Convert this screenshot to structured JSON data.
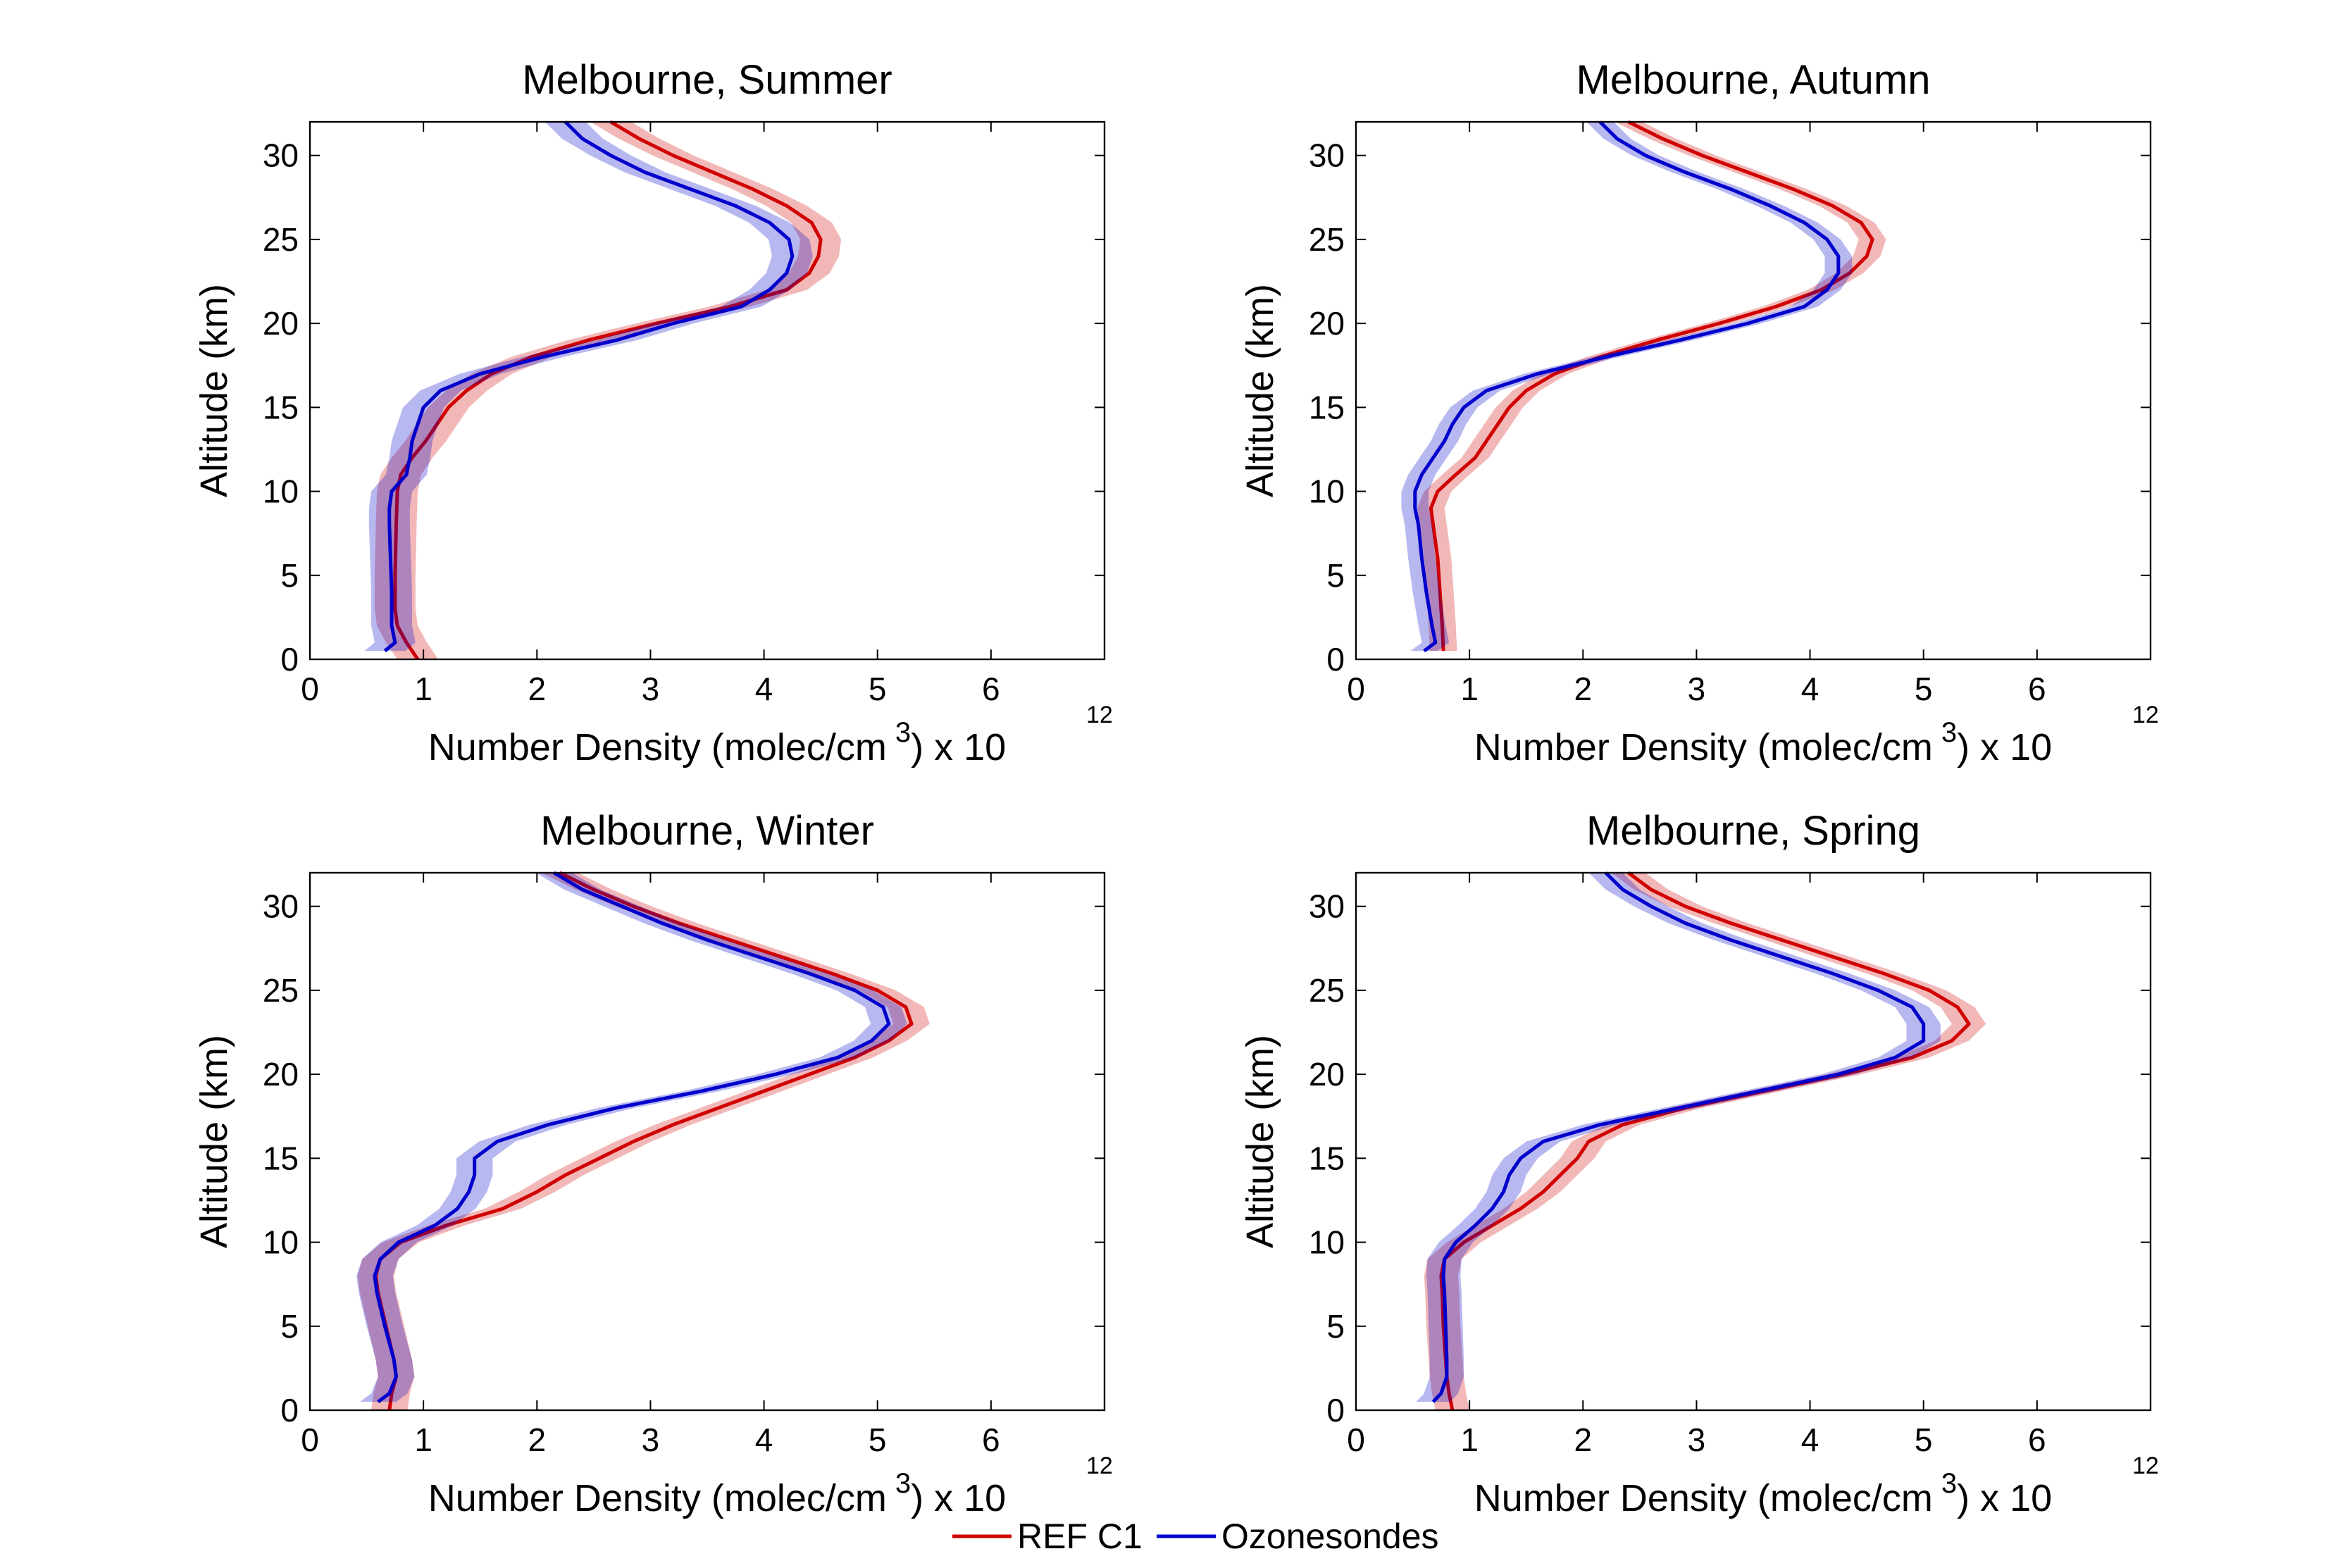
{
  "figure": {
    "legend": [
      {
        "label": "REF C1",
        "color": "#d10000"
      },
      {
        "label": "Ozonesondes",
        "color": "#0000cc"
      }
    ]
  },
  "chart_data": [
    {
      "type": "line",
      "title": "Melbourne, Summer",
      "xlabel": "Number Density (molec/cm 3) x 10",
      "xlabel_main": "Number Density (molec/cm",
      "xlabel_sup": "3",
      "xlabel_tail": ") x 10",
      "x_exponent": "12",
      "ylabel": "Altitude (km)",
      "xlim": [
        0,
        7
      ],
      "ylim": [
        0,
        32
      ],
      "xticks": [
        "0",
        "1",
        "2",
        "3",
        "4",
        "5",
        "6"
      ],
      "yticks": [
        "0",
        "5",
        "10",
        "15",
        "20",
        "25",
        "30"
      ],
      "band_width": 0.18,
      "series": [
        {
          "name": "REF C1",
          "color": "#d10000",
          "y": [
            0,
            1,
            2,
            3,
            5,
            8,
            10,
            11,
            12,
            13,
            14,
            15,
            16,
            17,
            18,
            19,
            20,
            21,
            22,
            23,
            24,
            25,
            26,
            27,
            28,
            29,
            30,
            31,
            32
          ],
          "x": [
            0.95,
            0.85,
            0.77,
            0.75,
            0.75,
            0.76,
            0.77,
            0.8,
            0.9,
            1.02,
            1.12,
            1.22,
            1.38,
            1.6,
            1.95,
            2.45,
            3.05,
            3.7,
            4.2,
            4.4,
            4.48,
            4.5,
            4.42,
            4.2,
            3.9,
            3.55,
            3.2,
            2.9,
            2.65
          ]
        },
        {
          "name": "Ozonesondes",
          "color": "#0000cc",
          "y": [
            0.5,
            1,
            2,
            4,
            6,
            8,
            9,
            10,
            11,
            12,
            13,
            14,
            15,
            16,
            17,
            18,
            19,
            20,
            21,
            22,
            23,
            24,
            25,
            26,
            27,
            28,
            29,
            30,
            31,
            32
          ],
          "x": [
            0.66,
            0.75,
            0.72,
            0.72,
            0.71,
            0.7,
            0.7,
            0.72,
            0.85,
            0.88,
            0.9,
            0.95,
            1.0,
            1.15,
            1.5,
            2.05,
            2.7,
            3.2,
            3.8,
            4.05,
            4.2,
            4.25,
            4.22,
            4.05,
            3.75,
            3.35,
            2.95,
            2.65,
            2.4,
            2.25
          ]
        }
      ]
    },
    {
      "type": "line",
      "title": "Melbourne, Autumn",
      "xlabel": "Number Density (molec/cm 3) x 10",
      "xlabel_main": "Number Density (molec/cm",
      "xlabel_sup": "3",
      "xlabel_tail": ") x 10",
      "x_exponent": "12",
      "ylabel": "Altitude (km)",
      "xlim": [
        0,
        7
      ],
      "ylim": [
        0,
        32
      ],
      "xticks": [
        "0",
        "1",
        "2",
        "3",
        "4",
        "5",
        "6"
      ],
      "yticks": [
        "0",
        "5",
        "10",
        "15",
        "20",
        "25",
        "30"
      ],
      "band_width": 0.12,
      "series": [
        {
          "name": "REF C1",
          "color": "#d10000",
          "y": [
            0.5,
            2,
            4,
            6,
            8,
            9,
            10,
            11,
            12,
            13,
            14,
            15,
            16,
            17,
            18,
            19,
            20,
            21,
            22,
            23,
            24,
            25,
            26,
            27,
            28,
            29,
            30,
            31,
            32
          ],
          "x": [
            0.77,
            0.76,
            0.74,
            0.72,
            0.68,
            0.66,
            0.72,
            0.88,
            1.05,
            1.15,
            1.25,
            1.35,
            1.5,
            1.75,
            2.15,
            2.65,
            3.2,
            3.7,
            4.1,
            4.35,
            4.5,
            4.55,
            4.45,
            4.2,
            3.85,
            3.45,
            3.05,
            2.7,
            2.4
          ]
        },
        {
          "name": "Ozonesondes",
          "color": "#0000cc",
          "y": [
            0.5,
            1,
            2,
            4,
            6,
            8,
            9,
            10,
            11,
            12,
            13,
            14,
            15,
            16,
            17,
            18,
            19,
            20,
            21,
            22,
            23,
            24,
            25,
            26,
            27,
            28,
            29,
            30,
            31,
            32
          ],
          "x": [
            0.6,
            0.7,
            0.67,
            0.62,
            0.58,
            0.55,
            0.52,
            0.52,
            0.58,
            0.68,
            0.78,
            0.85,
            0.95,
            1.15,
            1.6,
            2.2,
            2.85,
            3.45,
            3.95,
            4.15,
            4.25,
            4.25,
            4.15,
            3.95,
            3.65,
            3.3,
            2.9,
            2.55,
            2.3,
            2.15
          ]
        }
      ]
    },
    {
      "type": "line",
      "title": "Melbourne, Winter",
      "xlabel": "Number Density (molec/cm 3) x 10",
      "xlabel_main": "Number Density (molec/cm",
      "xlabel_sup": "3",
      "xlabel_tail": ") x 10",
      "x_exponent": "12",
      "ylabel": "Altitude (km)",
      "xlim": [
        0,
        7
      ],
      "ylim": [
        0,
        32
      ],
      "xticks": [
        "0",
        "1",
        "2",
        "3",
        "4",
        "5",
        "6"
      ],
      "yticks": [
        "0",
        "5",
        "10",
        "15",
        "20",
        "25",
        "30"
      ],
      "band_width": 0.16,
      "series": [
        {
          "name": "REF C1",
          "color": "#d10000",
          "y": [
            0,
            1,
            2,
            3,
            5,
            7,
            8,
            9,
            10,
            11,
            12,
            13,
            14,
            15,
            16,
            17,
            18,
            19,
            20,
            21,
            22,
            23,
            24,
            25,
            26,
            27,
            28,
            29,
            30,
            31,
            32
          ],
          "x": [
            0.7,
            0.72,
            0.76,
            0.74,
            0.67,
            0.6,
            0.58,
            0.62,
            0.8,
            1.2,
            1.7,
            2.0,
            2.25,
            2.55,
            2.85,
            3.2,
            3.6,
            4.0,
            4.4,
            4.8,
            5.1,
            5.3,
            5.25,
            5.0,
            4.6,
            4.15,
            3.7,
            3.25,
            2.85,
            2.5,
            2.2
          ]
        },
        {
          "name": "Ozonesondes",
          "color": "#0000cc",
          "y": [
            0.5,
            1,
            2,
            3,
            5,
            7,
            8,
            9,
            10,
            11,
            12,
            13,
            14,
            15,
            16,
            17,
            18,
            19,
            20,
            21,
            22,
            23,
            24,
            25,
            26,
            27,
            28,
            29,
            30,
            31,
            32
          ],
          "x": [
            0.6,
            0.7,
            0.76,
            0.74,
            0.66,
            0.59,
            0.57,
            0.62,
            0.78,
            1.1,
            1.3,
            1.4,
            1.45,
            1.45,
            1.65,
            2.1,
            2.7,
            3.45,
            4.1,
            4.65,
            4.95,
            5.1,
            5.05,
            4.8,
            4.4,
            3.95,
            3.5,
            3.1,
            2.75,
            2.4,
            2.15
          ]
        }
      ]
    },
    {
      "type": "line",
      "title": "Melbourne, Spring",
      "xlabel": "Number Density (molec/cm 3) x 10",
      "xlabel_main": "Number Density (molec/cm",
      "xlabel_sup": "3",
      "xlabel_tail": ") x 10",
      "x_exponent": "12",
      "ylabel": "Altitude (km)",
      "xlim": [
        0,
        7
      ],
      "ylim": [
        0,
        32
      ],
      "xticks": [
        "0",
        "1",
        "2",
        "3",
        "4",
        "5",
        "6"
      ],
      "yticks": [
        "0",
        "5",
        "10",
        "15",
        "20",
        "25",
        "30"
      ],
      "band_width": 0.15,
      "series": [
        {
          "name": "REF C1",
          "color": "#d10000",
          "y": [
            0,
            1,
            2,
            3,
            5,
            7,
            8,
            9,
            10,
            11,
            12,
            13,
            14,
            15,
            16,
            17,
            18,
            19,
            20,
            21,
            22,
            23,
            24,
            25,
            26,
            27,
            28,
            29,
            30,
            31,
            32
          ],
          "x": [
            0.85,
            0.82,
            0.8,
            0.79,
            0.77,
            0.76,
            0.75,
            0.78,
            0.95,
            1.2,
            1.45,
            1.65,
            1.8,
            1.95,
            2.05,
            2.35,
            2.9,
            3.6,
            4.3,
            4.9,
            5.25,
            5.4,
            5.3,
            5.05,
            4.65,
            4.2,
            3.75,
            3.3,
            2.9,
            2.6,
            2.4
          ]
        },
        {
          "name": "Ozonesondes",
          "color": "#0000cc",
          "y": [
            0.5,
            1,
            2,
            3,
            5,
            7,
            8,
            9,
            10,
            11,
            12,
            13,
            14,
            15,
            16,
            17,
            18,
            19,
            20,
            21,
            22,
            23,
            24,
            25,
            26,
            27,
            28,
            29,
            30,
            31,
            32
          ],
          "x": [
            0.68,
            0.75,
            0.8,
            0.8,
            0.79,
            0.78,
            0.77,
            0.78,
            0.88,
            1.05,
            1.2,
            1.3,
            1.35,
            1.45,
            1.65,
            2.15,
            2.85,
            3.55,
            4.25,
            4.75,
            5.0,
            5.0,
            4.9,
            4.6,
            4.2,
            3.75,
            3.3,
            2.9,
            2.6,
            2.35,
            2.2
          ]
        }
      ]
    }
  ]
}
